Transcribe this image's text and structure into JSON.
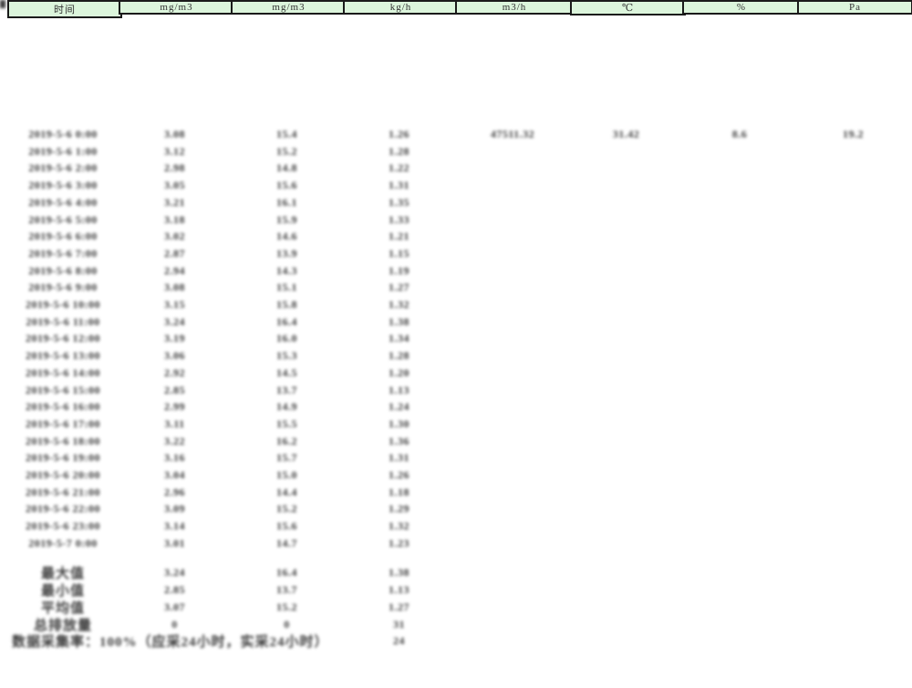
{
  "colors": {
    "page_background": "#ffffff",
    "masked_black": "#000000",
    "header_green": "#dcf5dc",
    "band_green": "#9cb89c",
    "border_dark": "#1a1a1a",
    "blob_text": "#3a3a3a"
  },
  "table": {
    "unit_header": [
      "时间",
      "mg/m3",
      "mg/m3",
      "kg/h",
      "m3/h",
      "℃",
      "%",
      "Pa"
    ],
    "first_row": {
      "time": "2019-5-6 0:00",
      "values": [
        "3.08",
        "15.4",
        "1.26",
        "47511.32",
        "31.42",
        "8.6",
        "19.2"
      ]
    },
    "rows": [
      [
        "2019-5-6 1:00",
        "3.12",
        "15.2",
        "1.28"
      ],
      [
        "2019-5-6 2:00",
        "2.98",
        "14.8",
        "1.22"
      ],
      [
        "2019-5-6 3:00",
        "3.05",
        "15.6",
        "1.31"
      ],
      [
        "2019-5-6 4:00",
        "3.21",
        "16.1",
        "1.35"
      ],
      [
        "2019-5-6 5:00",
        "3.18",
        "15.9",
        "1.33"
      ],
      [
        "2019-5-6 6:00",
        "3.02",
        "14.6",
        "1.21"
      ],
      [
        "2019-5-6 7:00",
        "2.87",
        "13.9",
        "1.15"
      ],
      [
        "2019-5-6 8:00",
        "2.94",
        "14.3",
        "1.19"
      ],
      [
        "2019-5-6 9:00",
        "3.08",
        "15.1",
        "1.27"
      ],
      [
        "2019-5-6 10:00",
        "3.15",
        "15.8",
        "1.32"
      ],
      [
        "2019-5-6 11:00",
        "3.24",
        "16.4",
        "1.38"
      ],
      [
        "2019-5-6 12:00",
        "3.19",
        "16.0",
        "1.34"
      ],
      [
        "2019-5-6 13:00",
        "3.06",
        "15.3",
        "1.28"
      ],
      [
        "2019-5-6 14:00",
        "2.92",
        "14.5",
        "1.20"
      ],
      [
        "2019-5-6 15:00",
        "2.85",
        "13.7",
        "1.13"
      ],
      [
        "2019-5-6 16:00",
        "2.99",
        "14.9",
        "1.24"
      ],
      [
        "2019-5-6 17:00",
        "3.11",
        "15.5",
        "1.30"
      ],
      [
        "2019-5-6 18:00",
        "3.22",
        "16.2",
        "1.36"
      ],
      [
        "2019-5-6 19:00",
        "3.16",
        "15.7",
        "1.31"
      ],
      [
        "2019-5-6 20:00",
        "3.04",
        "15.0",
        "1.26"
      ],
      [
        "2019-5-6 21:00",
        "2.96",
        "14.4",
        "1.18"
      ],
      [
        "2019-5-6 22:00",
        "3.09",
        "15.2",
        "1.29"
      ],
      [
        "2019-5-6 23:00",
        "3.14",
        "15.6",
        "1.32"
      ],
      [
        "2019-5-7 0:00",
        "3.01",
        "14.7",
        "1.23"
      ]
    ],
    "summary_rows": [
      [
        "最大值",
        "3.24",
        "16.4",
        "1.38"
      ],
      [
        "最小值",
        "2.85",
        "13.7",
        "1.13"
      ],
      [
        "平均值",
        "3.07",
        "15.2",
        "1.27"
      ],
      [
        "总排放量",
        "0",
        "0",
        "31"
      ]
    ],
    "footer": {
      "label": "数据采集率：100%（应采24小时，实采24小时）",
      "value": "24"
    }
  }
}
